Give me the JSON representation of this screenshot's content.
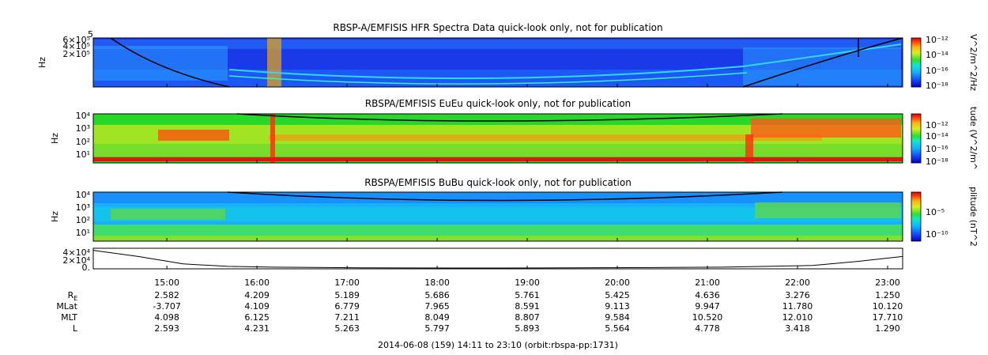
{
  "chart_data": [
    {
      "type": "heatmap",
      "title": "RBSP-A/EMFISIS  HFR Spectra Data quick-look only, not for publication",
      "ylabel": "Hz",
      "y_ticks": [
        "2×10⁵",
        "4×10⁵",
        "6×10⁵",
        "5"
      ],
      "colorbar_label": "V^2/m^2/Hz",
      "colorbar_ticks": [
        "10⁻¹²",
        "10⁻¹⁴",
        "10⁻¹⁶",
        "10⁻¹⁸"
      ],
      "colors": [
        "#1010c8",
        "#1c40f0",
        "#2a7cff",
        "#30c8ff"
      ]
    },
    {
      "type": "heatmap",
      "title": "RBSPA/EMFISIS  EuEu quick-look only, not for publication",
      "ylabel": "Hz",
      "y_ticks": [
        "10⁴",
        "10³",
        "10²",
        "10¹"
      ],
      "colorbar_label": "tude (V^2/m^",
      "colorbar_ticks": [
        "10⁻¹²",
        "10⁻¹⁴",
        "10⁻¹⁶",
        "10⁻¹⁸"
      ],
      "colors": [
        "#20d020",
        "#b8e820",
        "#ff8c10",
        "#ee2010"
      ]
    },
    {
      "type": "heatmap",
      "title": "RBSPA/EMFISIS  BuBu quick-look only, not for publication",
      "ylabel": "Hz",
      "y_ticks": [
        "10⁴",
        "10³",
        "10²",
        "10¹"
      ],
      "colorbar_label": "plitude (nT^2",
      "colorbar_ticks": [
        "10⁻⁵",
        "10⁻¹⁰"
      ],
      "colors": [
        "#1890ff",
        "#10c8f0",
        "#20e0a0",
        "#70d838"
      ]
    },
    {
      "type": "line",
      "y_ticks": [
        "4×10⁴",
        "2×10⁴",
        "0."
      ],
      "x": [
        0,
        0.5,
        1,
        1.5,
        2,
        3,
        4,
        5,
        6,
        7,
        8,
        8.5,
        9
      ],
      "y": [
        45000,
        30000,
        12000,
        6000,
        4000,
        2500,
        2000,
        2200,
        2800,
        4000,
        8000,
        18000,
        30000
      ]
    }
  ],
  "time_axis": {
    "ticks": [
      "15:00",
      "16:00",
      "17:00",
      "18:00",
      "19:00",
      "20:00",
      "21:00",
      "22:00",
      "23:00"
    ],
    "start_hour": 14.183,
    "end_hour": 23.167
  },
  "ephemeris": {
    "labels": [
      "R",
      "MLat",
      "MLT",
      "L"
    ],
    "r_subscript": "E",
    "rows": [
      [
        "2.582",
        "4.209",
        "5.189",
        "5.686",
        "5.761",
        "5.425",
        "4.636",
        "3.276",
        "1.250"
      ],
      [
        "-3.707",
        "4.109",
        "6.779",
        "7.965",
        "8.591",
        "9.113",
        "9.947",
        "11.780",
        "10.120"
      ],
      [
        "4.098",
        "6.125",
        "7.211",
        "8.049",
        "8.807",
        "9.584",
        "10.520",
        "12.010",
        "17.710"
      ],
      [
        "2.593",
        "4.231",
        "5.263",
        "5.797",
        "5.893",
        "5.564",
        "4.778",
        "3.418",
        "1.290"
      ]
    ]
  },
  "footer": "2014-06-08 (159) 14:11 to 23:10 (orbit:rbspa-pp:1731)"
}
